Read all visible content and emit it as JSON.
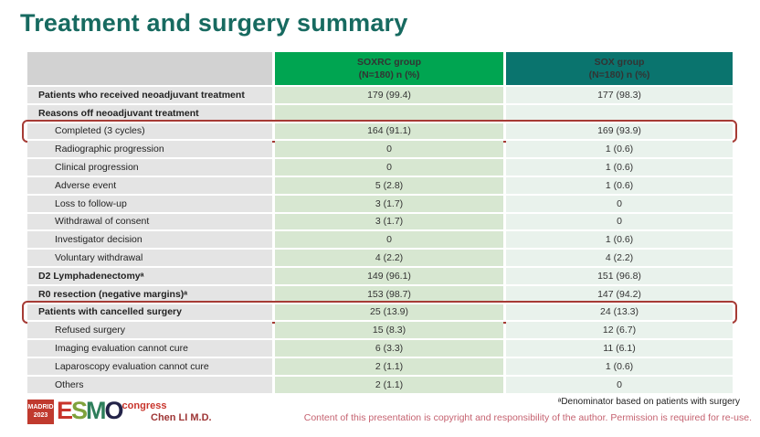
{
  "slide": {
    "title": "Treatment and surgery summary"
  },
  "table": {
    "columns": [
      {
        "name": "SOXRC group",
        "sub": "(N=180)  n (%)",
        "color": "#00A551"
      },
      {
        "name": "SOX group",
        "sub": "(N=180)  n (%)",
        "color": "#0A746E"
      }
    ],
    "rows": [
      {
        "label": "Patients who received neoadjuvant treatment",
        "bold": true,
        "indent": false,
        "v1": "179 (99.4)",
        "v2": "177 (98.3)",
        "highlight": false
      },
      {
        "label": "Reasons off neoadjuvant treatment",
        "bold": true,
        "indent": false,
        "v1": "",
        "v2": "",
        "highlight": false
      },
      {
        "label": "Completed (3 cycles)",
        "bold": false,
        "indent": true,
        "v1": "164 (91.1)",
        "v2": "169 (93.9)",
        "highlight": true
      },
      {
        "label": "Radiographic progression",
        "bold": false,
        "indent": true,
        "v1": "0",
        "v2": "1 (0.6)",
        "highlight": false
      },
      {
        "label": "Clinical progression",
        "bold": false,
        "indent": true,
        "v1": "0",
        "v2": "1 (0.6)",
        "highlight": false
      },
      {
        "label": "Adverse event",
        "bold": false,
        "indent": true,
        "v1": "5 (2.8)",
        "v2": "1 (0.6)",
        "highlight": false
      },
      {
        "label": "Loss to follow-up",
        "bold": false,
        "indent": true,
        "v1": "3 (1.7)",
        "v2": "0",
        "highlight": false
      },
      {
        "label": "Withdrawal of consent",
        "bold": false,
        "indent": true,
        "v1": "3 (1.7)",
        "v2": "0",
        "highlight": false
      },
      {
        "label": "Investigator decision",
        "bold": false,
        "indent": true,
        "v1": "0",
        "v2": "1 (0.6)",
        "highlight": false
      },
      {
        "label": "Voluntary withdrawal",
        "bold": false,
        "indent": true,
        "v1": "4 (2.2)",
        "v2": "4 (2.2)",
        "highlight": false
      },
      {
        "label": "D2 Lymphadenectomyᵃ",
        "bold": true,
        "indent": false,
        "v1": "149 (96.1)",
        "v2": "151 (96.8)",
        "highlight": false
      },
      {
        "label": "R0 resection (negative margins)ᵃ",
        "bold": true,
        "indent": false,
        "v1": "153 (98.7)",
        "v2": "147 (94.2)",
        "highlight": false
      },
      {
        "label": "Patients with cancelled surgery",
        "bold": true,
        "indent": false,
        "v1": "25 (13.9)",
        "v2": "24 (13.3)",
        "highlight": true
      },
      {
        "label": "Refused surgery",
        "bold": false,
        "indent": true,
        "v1": "15 (8.3)",
        "v2": "12 (6.7)",
        "highlight": false
      },
      {
        "label": "Imaging evaluation cannot cure",
        "bold": false,
        "indent": true,
        "v1": "6 (3.3)",
        "v2": "11 (6.1)",
        "highlight": false
      },
      {
        "label": "Laparoscopy evaluation cannot cure",
        "bold": false,
        "indent": true,
        "v1": "2 (1.1)",
        "v2": "1 (0.6)",
        "highlight": false
      },
      {
        "label": "Others",
        "bold": false,
        "indent": true,
        "v1": "2 (1.1)",
        "v2": "0",
        "highlight": false
      }
    ]
  },
  "footer": {
    "logo": {
      "badge_line1": "MADRID",
      "badge_line2": "2023",
      "letters": [
        "E",
        "S",
        "M",
        "O"
      ],
      "congress": "congress"
    },
    "presenter": "Chen LI M.D.",
    "footnote": "ᵃDenominator based on patients with surgery",
    "copyright": "Content of this presentation is copyright and responsibility of the author.  Permission is required for re-use."
  },
  "colors": {
    "title": "#176A60",
    "header_green": "#00A551",
    "header_teal": "#0A746E",
    "label_cell": "#E4E4E4",
    "soxrc_cell": "#D7E7D1",
    "sox_cell": "#E9F2EC",
    "highlight_border": "#A63B35",
    "presenter_text": "#9E3535",
    "copyright_text": "#C56270"
  }
}
